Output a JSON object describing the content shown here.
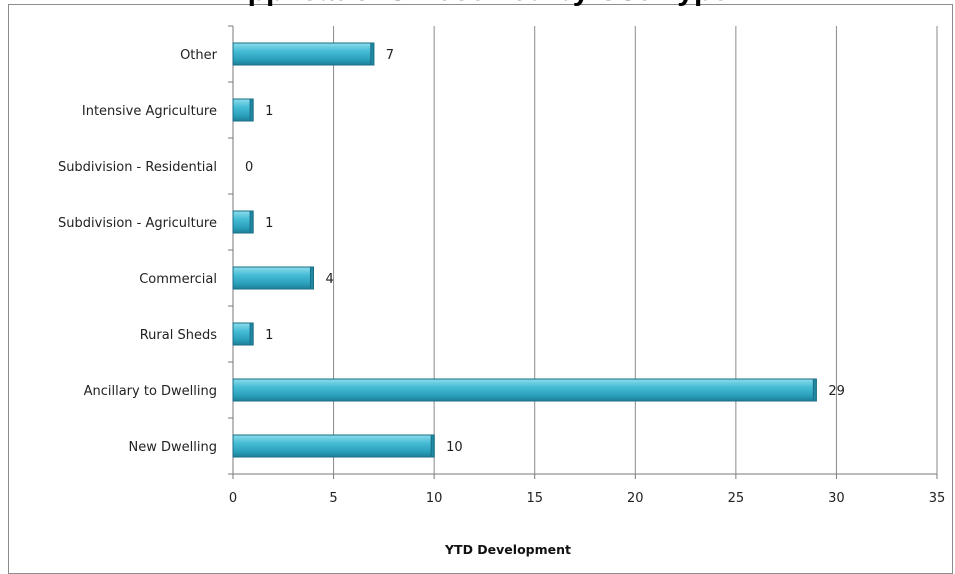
{
  "chart_data": {
    "type": "bar",
    "orientation": "horizontal",
    "title": "Applications Received by Use Type",
    "xlabel": "YTD Development",
    "ylabel": "",
    "xlim": [
      0,
      35
    ],
    "x_ticks": [
      0,
      5,
      10,
      15,
      20,
      25,
      30,
      35
    ],
    "grid": "vertical",
    "legend": "none",
    "bar_color": "#3fb6cf",
    "categories": [
      "Other",
      "Intensive Agriculture",
      "Subdivision - Residential",
      "Subdivision - Agriculture",
      "Commercial",
      "Rural Sheds",
      "Ancillary to Dwelling",
      "New Dwelling"
    ],
    "values": [
      7,
      1,
      0,
      1,
      4,
      1,
      29,
      10
    ]
  }
}
